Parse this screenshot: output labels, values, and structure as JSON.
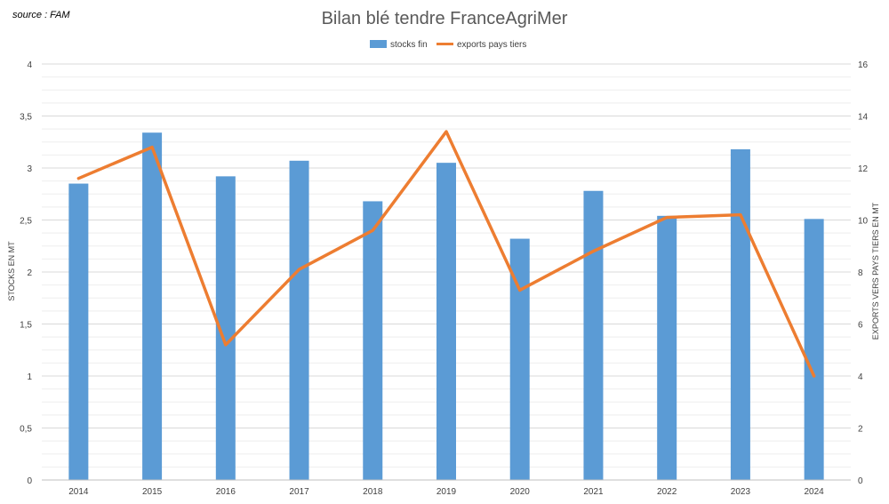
{
  "source_note": "source : FAM",
  "chart_data": {
    "type": "bar",
    "title": "Bilan blé tendre FranceAgriMer",
    "categories": [
      "2014",
      "2015",
      "2016",
      "2017",
      "2018",
      "2019",
      "2020",
      "2021",
      "2022",
      "2023",
      "2024"
    ],
    "series": [
      {
        "name": "stocks fin",
        "type": "bar",
        "axis": "left",
        "color": "#5B9BD5",
        "values": [
          2.85,
          3.34,
          2.92,
          3.07,
          2.68,
          3.05,
          2.32,
          2.78,
          2.54,
          3.18,
          2.51
        ]
      },
      {
        "name": "exports pays tiers",
        "type": "line",
        "axis": "right",
        "color": "#ED7D31",
        "values": [
          11.6,
          12.8,
          5.2,
          8.1,
          9.6,
          13.4,
          7.3,
          8.8,
          10.1,
          10.2,
          4.0
        ]
      }
    ],
    "y_left": {
      "label": "STOCKS EN MT",
      "range": [
        0,
        4
      ],
      "ticks": [
        "0",
        "0,5",
        "1",
        "1,5",
        "2",
        "2,5",
        "3",
        "3,5",
        "4"
      ]
    },
    "y_right": {
      "label": "EXPORTS VERS PAYS TIERS EN MT",
      "range": [
        0,
        16
      ],
      "ticks": [
        "0",
        "2",
        "4",
        "6",
        "8",
        "10",
        "12",
        "14",
        "16"
      ]
    },
    "grid": true,
    "legend_position": "top-center"
  }
}
